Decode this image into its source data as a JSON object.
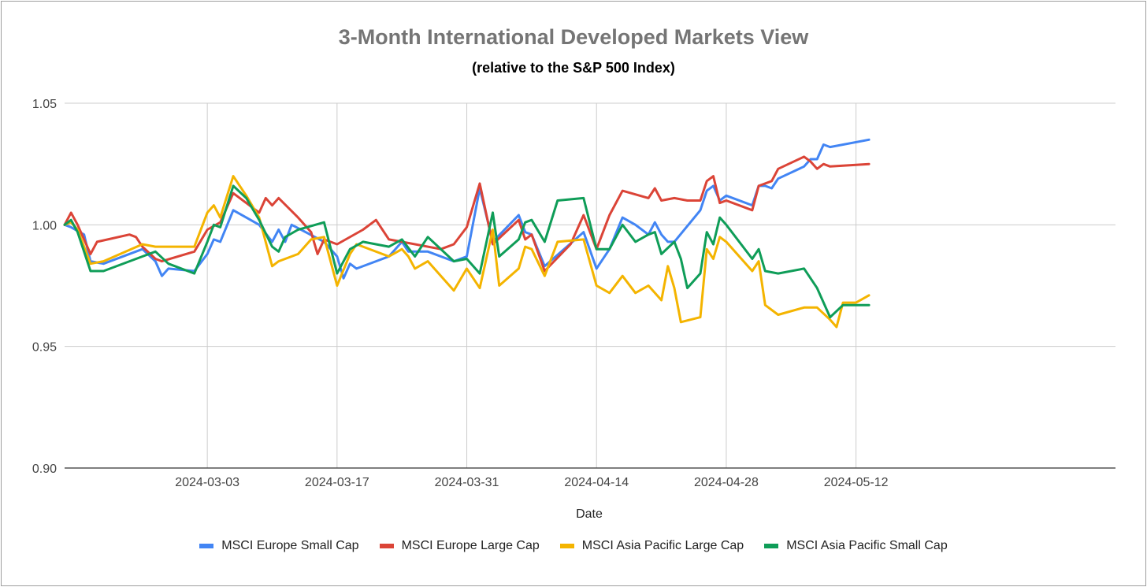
{
  "chart_data": {
    "type": "line",
    "title": "3-Month International Developed Markets View",
    "subtitle": "(relative to the S&P 500 Index)",
    "xlabel": "Date",
    "ylabel": "",
    "ylim": [
      0.9,
      1.05
    ],
    "yticks": [
      "0.90",
      "0.95",
      "1.00",
      "1.05"
    ],
    "xlim": [
      0,
      81
    ],
    "xticks": [
      {
        "label": "2024-03-03",
        "x": 11
      },
      {
        "label": "2024-03-17",
        "x": 21
      },
      {
        "label": "2024-03-31",
        "x": 31
      },
      {
        "label": "2024-04-14",
        "x": 41
      },
      {
        "label": "2024-04-28",
        "x": 51
      },
      {
        "label": "2024-05-12",
        "x": 61
      }
    ],
    "series": [
      {
        "name": "MSCI Europe Small Cap",
        "color": "#4285F4",
        "values": [
          [
            0,
            1.0
          ],
          [
            0.5,
            0.999
          ],
          [
            1.5,
            0.996
          ],
          [
            2,
            0.985
          ],
          [
            3,
            0.984
          ],
          [
            6,
            0.99
          ],
          [
            7,
            0.985
          ],
          [
            7.5,
            0.979
          ],
          [
            8,
            0.982
          ],
          [
            10,
            0.981
          ],
          [
            11,
            0.988
          ],
          [
            11.5,
            0.994
          ],
          [
            12,
            0.993
          ],
          [
            13,
            1.006
          ],
          [
            14,
            1.003
          ],
          [
            15,
            1.0
          ],
          [
            16,
            0.993
          ],
          [
            16.5,
            0.998
          ],
          [
            17,
            0.993
          ],
          [
            17.5,
            1.0
          ],
          [
            20,
            0.993
          ],
          [
            21,
            0.987
          ],
          [
            21.5,
            0.978
          ],
          [
            22,
            0.984
          ],
          [
            22.5,
            0.982
          ],
          [
            25,
            0.987
          ],
          [
            26,
            0.993
          ],
          [
            26.5,
            0.989
          ],
          [
            28,
            0.989
          ],
          [
            30,
            0.985
          ],
          [
            31,
            0.987
          ],
          [
            32,
            1.015
          ],
          [
            33,
            0.993
          ],
          [
            35,
            1.004
          ],
          [
            35.5,
            0.997
          ],
          [
            36,
            0.996
          ],
          [
            37,
            0.983
          ],
          [
            40,
            0.997
          ],
          [
            41,
            0.982
          ],
          [
            42,
            0.99
          ],
          [
            43,
            1.003
          ],
          [
            44,
            1.0
          ],
          [
            45,
            0.996
          ],
          [
            45.5,
            1.001
          ],
          [
            46,
            0.996
          ],
          [
            46.5,
            0.993
          ],
          [
            47,
            0.993
          ],
          [
            49,
            1.006
          ],
          [
            49.5,
            1.014
          ],
          [
            50,
            1.016
          ],
          [
            50.5,
            1.01
          ],
          [
            51,
            1.012
          ],
          [
            53,
            1.008
          ],
          [
            53.5,
            1.016
          ],
          [
            54,
            1.016
          ],
          [
            54.5,
            1.015
          ],
          [
            55,
            1.019
          ],
          [
            57,
            1.024
          ],
          [
            57.5,
            1.027
          ],
          [
            58,
            1.027
          ],
          [
            58.5,
            1.033
          ],
          [
            59,
            1.032
          ],
          [
            62,
            1.035
          ]
        ]
      },
      {
        "name": "MSCI Europe Large Cap",
        "color": "#DB4437",
        "values": [
          [
            0,
            1.0
          ],
          [
            0.5,
            1.005
          ],
          [
            1,
            1.0
          ],
          [
            2,
            0.988
          ],
          [
            2.5,
            0.993
          ],
          [
            5,
            0.996
          ],
          [
            5.5,
            0.995
          ],
          [
            6,
            0.991
          ],
          [
            7,
            0.986
          ],
          [
            7.5,
            0.985
          ],
          [
            10,
            0.989
          ],
          [
            11,
            0.998
          ],
          [
            12,
            1.001
          ],
          [
            13,
            1.013
          ],
          [
            14,
            1.009
          ],
          [
            15,
            1.005
          ],
          [
            15.5,
            1.011
          ],
          [
            16,
            1.008
          ],
          [
            16.5,
            1.011
          ],
          [
            18,
            1.003
          ],
          [
            19,
            0.997
          ],
          [
            19.5,
            0.988
          ],
          [
            20,
            0.994
          ],
          [
            21,
            0.992
          ],
          [
            23,
            0.998
          ],
          [
            24,
            1.002
          ],
          [
            25,
            0.994
          ],
          [
            26,
            0.993
          ],
          [
            29,
            0.99
          ],
          [
            30,
            0.992
          ],
          [
            31,
            0.999
          ],
          [
            32,
            1.017
          ],
          [
            33,
            0.992
          ],
          [
            35,
            1.002
          ],
          [
            35.5,
            0.994
          ],
          [
            36,
            0.996
          ],
          [
            37,
            0.981
          ],
          [
            39,
            0.992
          ],
          [
            40,
            1.004
          ],
          [
            41,
            0.99
          ],
          [
            42,
            1.004
          ],
          [
            43,
            1.014
          ],
          [
            45,
            1.011
          ],
          [
            45.5,
            1.015
          ],
          [
            46,
            1.01
          ],
          [
            47,
            1.011
          ],
          [
            48,
            1.01
          ],
          [
            49,
            1.01
          ],
          [
            49.5,
            1.018
          ],
          [
            50,
            1.02
          ],
          [
            50.5,
            1.009
          ],
          [
            51,
            1.01
          ],
          [
            53,
            1.006
          ],
          [
            53.5,
            1.016
          ],
          [
            54,
            1.017
          ],
          [
            54.5,
            1.018
          ],
          [
            55,
            1.023
          ],
          [
            57,
            1.028
          ],
          [
            57.5,
            1.026
          ],
          [
            58,
            1.023
          ],
          [
            58.5,
            1.025
          ],
          [
            59,
            1.024
          ],
          [
            62,
            1.025
          ]
        ]
      },
      {
        "name": "MSCI Asia Pacific Large Cap",
        "color": "#F4B400",
        "values": [
          [
            0,
            1.0
          ],
          [
            0.5,
            1.001
          ],
          [
            1,
            0.998
          ],
          [
            2,
            0.984
          ],
          [
            3,
            0.985
          ],
          [
            6,
            0.992
          ],
          [
            7,
            0.991
          ],
          [
            8,
            0.991
          ],
          [
            10,
            0.991
          ],
          [
            11,
            1.005
          ],
          [
            11.5,
            1.008
          ],
          [
            12,
            1.003
          ],
          [
            13,
            1.02
          ],
          [
            14,
            1.012
          ],
          [
            15,
            1.003
          ],
          [
            16,
            0.983
          ],
          [
            16.5,
            0.985
          ],
          [
            18,
            0.988
          ],
          [
            19,
            0.994
          ],
          [
            20,
            0.995
          ],
          [
            21,
            0.975
          ],
          [
            22,
            0.988
          ],
          [
            22.5,
            0.992
          ],
          [
            25,
            0.987
          ],
          [
            26,
            0.99
          ],
          [
            26.5,
            0.987
          ],
          [
            27,
            0.982
          ],
          [
            28,
            0.985
          ],
          [
            30,
            0.973
          ],
          [
            31,
            0.982
          ],
          [
            32,
            0.974
          ],
          [
            33,
            0.998
          ],
          [
            33.5,
            0.975
          ],
          [
            35,
            0.982
          ],
          [
            35.5,
            0.991
          ],
          [
            36,
            0.99
          ],
          [
            37,
            0.979
          ],
          [
            38,
            0.993
          ],
          [
            40,
            0.994
          ],
          [
            41,
            0.975
          ],
          [
            42,
            0.972
          ],
          [
            43,
            0.979
          ],
          [
            44,
            0.972
          ],
          [
            45,
            0.975
          ],
          [
            46,
            0.969
          ],
          [
            46.5,
            0.983
          ],
          [
            47,
            0.974
          ],
          [
            47.5,
            0.96
          ],
          [
            49,
            0.962
          ],
          [
            49.5,
            0.99
          ],
          [
            50,
            0.986
          ],
          [
            50.5,
            0.995
          ],
          [
            51,
            0.993
          ],
          [
            53,
            0.981
          ],
          [
            53.5,
            0.985
          ],
          [
            54,
            0.967
          ],
          [
            55,
            0.963
          ],
          [
            57,
            0.966
          ],
          [
            58,
            0.966
          ],
          [
            59,
            0.961
          ],
          [
            59.5,
            0.958
          ],
          [
            60,
            0.968
          ],
          [
            61,
            0.968
          ],
          [
            62,
            0.971
          ]
        ]
      },
      {
        "name": "MSCI Asia Pacific Small Cap",
        "color": "#0F9D58",
        "values": [
          [
            0,
            1.0
          ],
          [
            0.5,
            1.002
          ],
          [
            1,
            0.997
          ],
          [
            2,
            0.981
          ],
          [
            3,
            0.981
          ],
          [
            6,
            0.987
          ],
          [
            7,
            0.989
          ],
          [
            8,
            0.984
          ],
          [
            10,
            0.98
          ],
          [
            11,
            0.993
          ],
          [
            11.5,
            1.0
          ],
          [
            12,
            0.999
          ],
          [
            13,
            1.016
          ],
          [
            14,
            1.011
          ],
          [
            15,
            1.002
          ],
          [
            16,
            0.991
          ],
          [
            16.5,
            0.989
          ],
          [
            17,
            0.995
          ],
          [
            18,
            0.998
          ],
          [
            20,
            1.001
          ],
          [
            21,
            0.98
          ],
          [
            22,
            0.99
          ],
          [
            23,
            0.993
          ],
          [
            25,
            0.991
          ],
          [
            26,
            0.994
          ],
          [
            27,
            0.987
          ],
          [
            28,
            0.995
          ],
          [
            30,
            0.985
          ],
          [
            31,
            0.986
          ],
          [
            32,
            0.98
          ],
          [
            33,
            1.005
          ],
          [
            33.5,
            0.987
          ],
          [
            35,
            0.994
          ],
          [
            35.5,
            1.001
          ],
          [
            36,
            1.002
          ],
          [
            37,
            0.993
          ],
          [
            38,
            1.01
          ],
          [
            40,
            1.011
          ],
          [
            41,
            0.99
          ],
          [
            42,
            0.99
          ],
          [
            43,
            1.0
          ],
          [
            44,
            0.993
          ],
          [
            45,
            0.996
          ],
          [
            45.5,
            0.997
          ],
          [
            46,
            0.988
          ],
          [
            47,
            0.993
          ],
          [
            47.5,
            0.986
          ],
          [
            48,
            0.974
          ],
          [
            49,
            0.98
          ],
          [
            49.5,
            0.997
          ],
          [
            50,
            0.992
          ],
          [
            50.5,
            1.003
          ],
          [
            51,
            1.0
          ],
          [
            53,
            0.986
          ],
          [
            53.5,
            0.99
          ],
          [
            54,
            0.981
          ],
          [
            55,
            0.98
          ],
          [
            57,
            0.982
          ],
          [
            58,
            0.974
          ],
          [
            59,
            0.962
          ],
          [
            60,
            0.967
          ],
          [
            62,
            0.967
          ]
        ]
      }
    ]
  }
}
